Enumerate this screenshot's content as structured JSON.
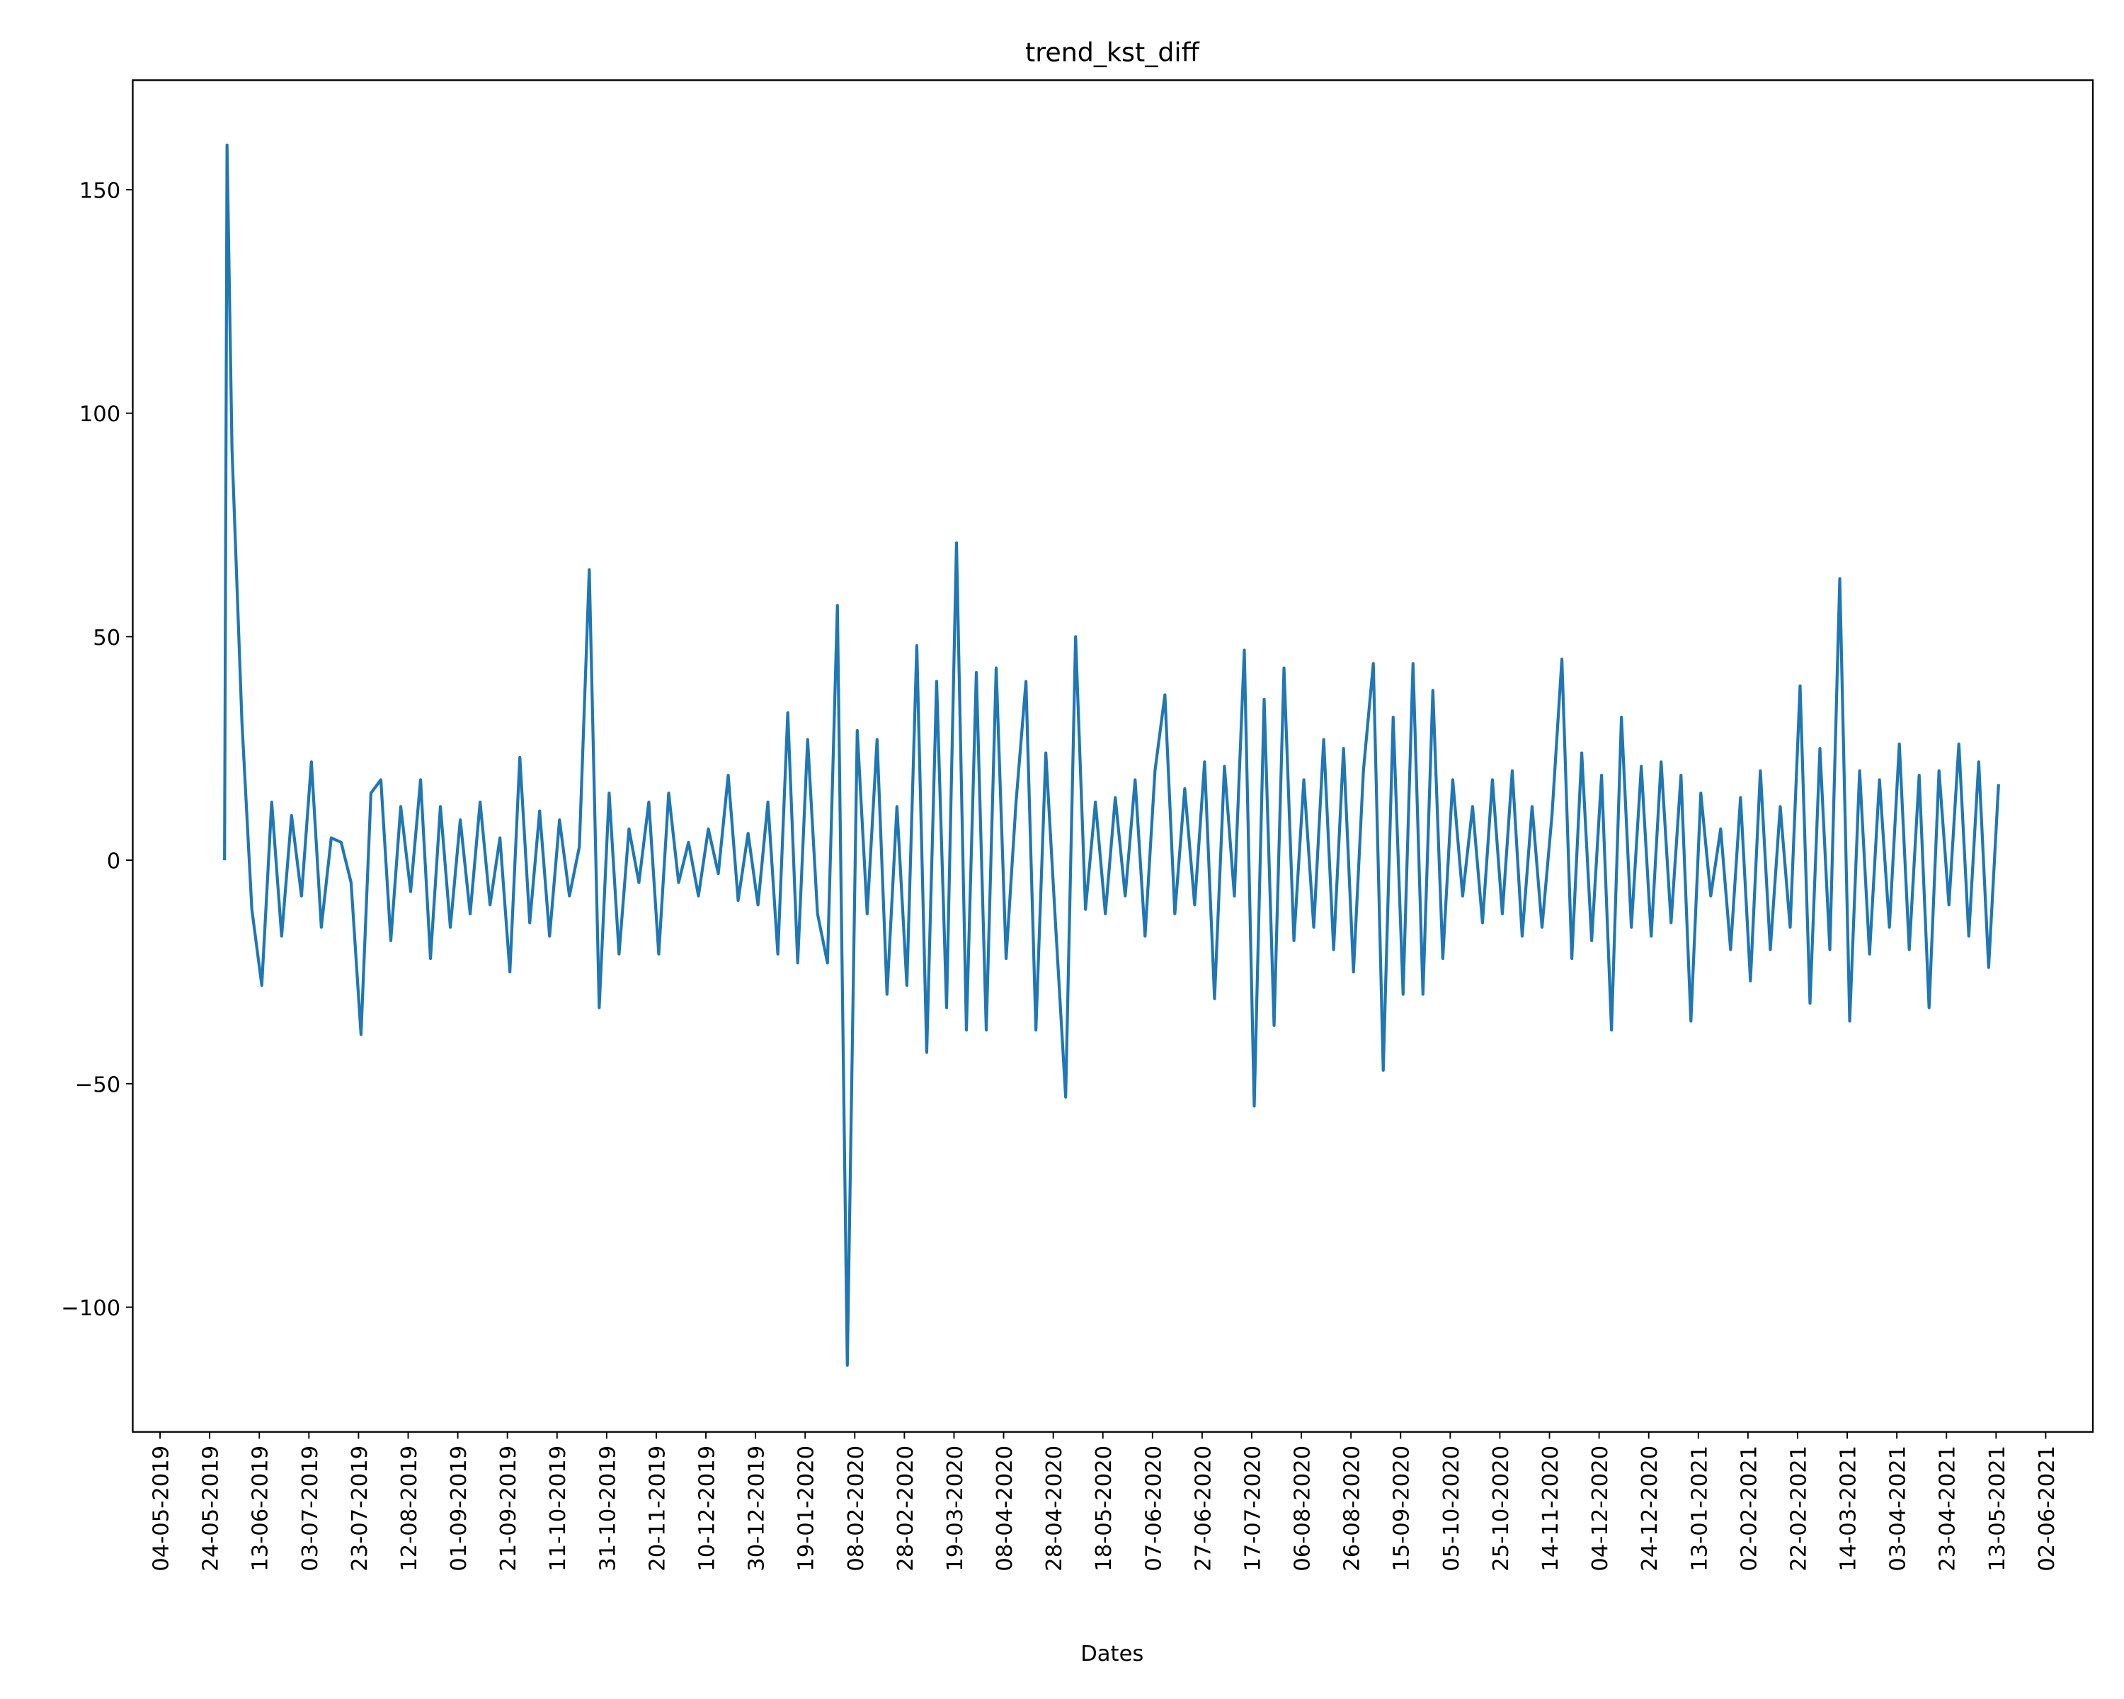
{
  "chart_data": {
    "type": "line",
    "title": "trend_kst_diff",
    "x_label": "Dates",
    "color": "#1f77b4",
    "x": [
      "30-05-2019",
      "31-05-2019",
      "02-06-2019",
      "06-06-2019",
      "10-06-2019",
      "14-06-2019",
      "18-06-2019",
      "22-06-2019",
      "26-06-2019",
      "30-06-2019",
      "04-07-2019",
      "08-07-2019",
      "12-07-2019",
      "16-07-2019",
      "20-07-2019",
      "24-07-2019",
      "28-07-2019",
      "01-08-2019",
      "05-08-2019",
      "09-08-2019",
      "13-08-2019",
      "17-08-2019",
      "21-08-2019",
      "25-08-2019",
      "29-08-2019",
      "02-09-2019",
      "06-09-2019",
      "10-09-2019",
      "14-09-2019",
      "18-09-2019",
      "22-09-2019",
      "26-09-2019",
      "30-09-2019",
      "04-10-2019",
      "08-10-2019",
      "12-10-2019",
      "16-10-2019",
      "20-10-2019",
      "24-10-2019",
      "28-10-2019",
      "01-11-2019",
      "05-11-2019",
      "09-11-2019",
      "13-11-2019",
      "17-11-2019",
      "21-11-2019",
      "25-11-2019",
      "29-11-2019",
      "03-12-2019",
      "07-12-2019",
      "11-12-2019",
      "15-12-2019",
      "19-12-2019",
      "23-12-2019",
      "27-12-2019",
      "31-12-2019",
      "04-01-2020",
      "08-01-2020",
      "12-01-2020",
      "16-01-2020",
      "20-01-2020",
      "24-01-2020",
      "28-01-2020",
      "01-02-2020",
      "05-02-2020",
      "09-02-2020",
      "13-02-2020",
      "17-02-2020",
      "21-02-2020",
      "25-02-2020",
      "29-02-2020",
      "04-03-2020",
      "08-03-2020",
      "12-03-2020",
      "16-03-2020",
      "20-03-2020",
      "24-03-2020",
      "28-03-2020",
      "01-04-2020",
      "05-04-2020",
      "09-04-2020",
      "13-04-2020",
      "17-04-2020",
      "21-04-2020",
      "25-04-2020",
      "29-04-2020",
      "03-05-2020",
      "07-05-2020",
      "11-05-2020",
      "15-05-2020",
      "19-05-2020",
      "23-05-2020",
      "27-05-2020",
      "31-05-2020",
      "04-06-2020",
      "08-06-2020",
      "12-06-2020",
      "16-06-2020",
      "20-06-2020",
      "24-06-2020",
      "28-06-2020",
      "02-07-2020",
      "06-07-2020",
      "10-07-2020",
      "14-07-2020",
      "18-07-2020",
      "22-07-2020",
      "26-07-2020",
      "30-07-2020",
      "03-08-2020",
      "07-08-2020",
      "11-08-2020",
      "15-08-2020",
      "19-08-2020",
      "23-08-2020",
      "27-08-2020",
      "31-08-2020",
      "04-09-2020",
      "08-09-2020",
      "12-09-2020",
      "16-09-2020",
      "20-09-2020",
      "24-09-2020",
      "28-09-2020",
      "02-10-2020",
      "06-10-2020",
      "10-10-2020",
      "14-10-2020",
      "18-10-2020",
      "22-10-2020",
      "26-10-2020",
      "30-10-2020",
      "03-11-2020",
      "07-11-2020",
      "11-11-2020",
      "15-11-2020",
      "19-11-2020",
      "23-11-2020",
      "27-11-2020",
      "01-12-2020",
      "05-12-2020",
      "09-12-2020",
      "13-12-2020",
      "17-12-2020",
      "21-12-2020",
      "25-12-2020",
      "29-12-2020",
      "02-01-2021",
      "06-01-2021",
      "10-01-2021",
      "14-01-2021",
      "18-01-2021",
      "22-01-2021",
      "26-01-2021",
      "30-01-2021",
      "03-02-2021",
      "07-02-2021",
      "11-02-2021",
      "15-02-2021",
      "19-02-2021",
      "23-02-2021",
      "27-02-2021",
      "03-03-2021",
      "07-03-2021",
      "11-03-2021",
      "15-03-2021",
      "19-03-2021",
      "23-03-2021",
      "27-03-2021",
      "31-03-2021",
      "04-04-2021",
      "08-04-2021",
      "12-04-2021",
      "16-04-2021",
      "20-04-2021",
      "24-04-2021",
      "28-04-2021",
      "02-05-2021",
      "06-05-2021",
      "10-05-2021",
      "14-05-2021"
    ],
    "values": [
      0,
      160,
      92,
      31,
      -11,
      -28,
      13,
      -17,
      10,
      -8,
      22,
      -15,
      5,
      4,
      -5,
      -39,
      15,
      18,
      -18,
      12,
      -7,
      18,
      -22,
      12,
      -15,
      9,
      -12,
      13,
      -10,
      5,
      -25,
      23,
      -14,
      11,
      -17,
      9,
      -8,
      3,
      65,
      -33,
      15,
      -21,
      7,
      -5,
      13,
      -21,
      15,
      -5,
      4,
      -8,
      7,
      -3,
      19,
      -9,
      6,
      -10,
      13,
      -21,
      33,
      -23,
      27,
      -12,
      -23,
      57,
      -113,
      29,
      -12,
      27,
      -30,
      12,
      -28,
      48,
      -43,
      40,
      -33,
      71,
      -38,
      42,
      -38,
      43,
      -22,
      13,
      40,
      -38,
      24,
      -15,
      -53,
      50,
      -11,
      13,
      -12,
      14,
      -8,
      18,
      -17,
      20,
      37,
      -12,
      16,
      -10,
      22,
      -31,
      21,
      -8,
      47,
      -55,
      36,
      -37,
      43,
      -18,
      18,
      -15,
      27,
      -20,
      25,
      -25,
      20,
      44,
      -47,
      32,
      -30,
      44,
      -30,
      38,
      -22,
      18,
      -8,
      12,
      -14,
      18,
      -12,
      20,
      -17,
      12,
      -15,
      10,
      45,
      -22,
      24,
      -18,
      19,
      -38,
      32,
      -15,
      21,
      -17,
      22,
      -14,
      19,
      -36,
      15,
      -8,
      7,
      -20,
      14,
      -27,
      20,
      -20,
      12,
      -15,
      39,
      -32,
      25,
      -20,
      63,
      -36,
      20,
      -21,
      18,
      -15,
      26,
      -20,
      19,
      -33,
      20,
      -10,
      26,
      -17,
      22,
      -24,
      17
    ],
    "xlim": [
      "23-04-2019",
      "21-06-2021"
    ],
    "xticks": [
      "04-05-2019",
      "24-05-2019",
      "13-06-2019",
      "03-07-2019",
      "23-07-2019",
      "12-08-2019",
      "01-09-2019",
      "21-09-2019",
      "11-10-2019",
      "31-10-2019",
      "20-11-2019",
      "10-12-2019",
      "30-12-2019",
      "19-01-2020",
      "08-02-2020",
      "28-02-2020",
      "19-03-2020",
      "08-04-2020",
      "28-04-2020",
      "18-05-2020",
      "07-06-2020",
      "27-06-2020",
      "17-07-2020",
      "06-08-2020",
      "26-08-2020",
      "15-09-2020",
      "05-10-2020",
      "25-10-2020",
      "14-11-2020",
      "04-12-2020",
      "24-12-2020",
      "13-01-2021",
      "02-02-2021",
      "22-02-2021",
      "14-03-2021",
      "03-04-2021",
      "23-04-2021",
      "13-05-2021",
      "02-06-2021"
    ],
    "ylim": [
      -127.9,
      174.5
    ],
    "yticks": [
      {
        "value": -100,
        "label": "−100"
      },
      {
        "value": -50,
        "label": "−50"
      },
      0,
      50,
      100,
      150
    ]
  }
}
